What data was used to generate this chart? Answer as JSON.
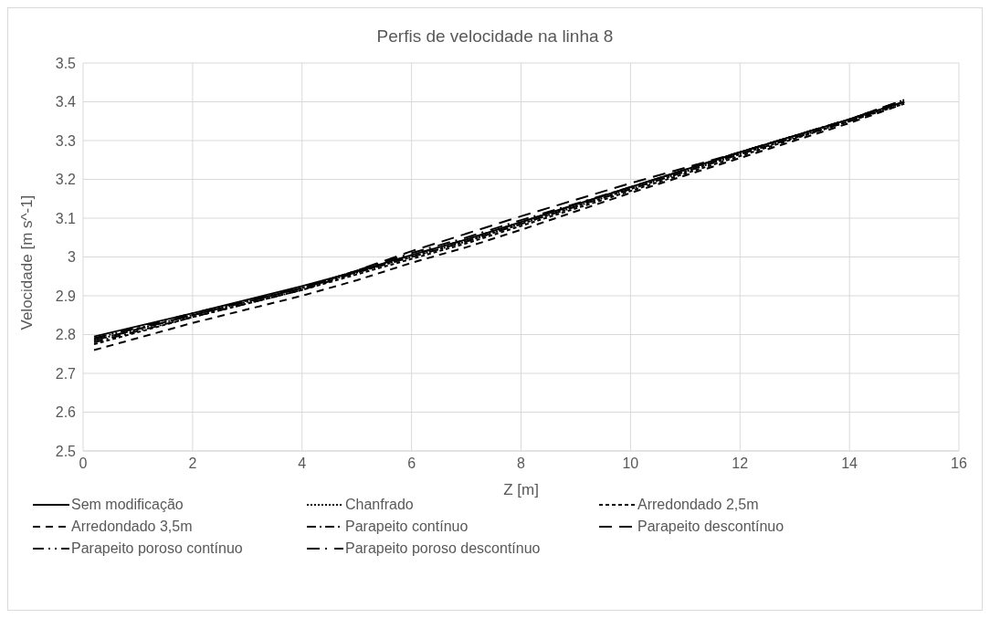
{
  "chart_data": {
    "type": "line",
    "title": "Perfis de velocidade na linha 8",
    "xlabel": "Z [m]",
    "ylabel": "Velocidade [m s^-1]",
    "xlim": [
      0,
      16
    ],
    "xticks": [
      0,
      2,
      4,
      6,
      8,
      10,
      12,
      14,
      16
    ],
    "ylim": [
      2.5,
      3.5
    ],
    "yticks": [
      2.5,
      2.6,
      2.7,
      2.8,
      2.9,
      3,
      3.1,
      3.2,
      3.3,
      3.4,
      3.5
    ],
    "grid": true,
    "legend": "bottom",
    "marker": "none",
    "x": [
      0.2,
      2,
      4,
      5,
      6,
      7,
      8,
      10,
      12,
      14,
      15
    ],
    "series": [
      {
        "name": "Sem modificação",
        "color": "#000000",
        "line_style": "solid",
        "values": [
          2.795,
          2.855,
          2.925,
          2.963,
          3.005,
          3.045,
          3.09,
          3.18,
          3.27,
          3.355,
          3.4
        ]
      },
      {
        "name": "Chanfrado",
        "color": "#000000",
        "line_style": "dotted",
        "values": [
          2.785,
          2.85,
          2.92,
          2.96,
          3.0,
          3.04,
          3.085,
          3.175,
          3.265,
          3.35,
          3.4
        ]
      },
      {
        "name": "Arredondado 2,5m",
        "color": "#000000",
        "line_style": "dashed",
        "values": [
          2.775,
          2.845,
          2.915,
          2.955,
          2.995,
          3.035,
          3.08,
          3.17,
          3.26,
          3.35,
          3.395
        ]
      },
      {
        "name": "Arredondado 3,5m",
        "color": "#000000",
        "line_style": "dashed",
        "values": [
          2.76,
          2.83,
          2.9,
          2.94,
          2.985,
          3.025,
          3.07,
          3.165,
          3.255,
          3.345,
          3.395
        ]
      },
      {
        "name": "Parapeito contínuo",
        "color": "#000000",
        "line_style": "dashed",
        "values": [
          2.78,
          2.845,
          2.915,
          2.96,
          3.0,
          3.04,
          3.085,
          3.175,
          3.265,
          3.35,
          3.4
        ]
      },
      {
        "name": "Parapeito descontínuo",
        "color": "#000000",
        "line_style": "dashed",
        "values": [
          2.785,
          2.85,
          2.92,
          2.965,
          3.015,
          3.06,
          3.105,
          3.19,
          3.27,
          3.355,
          3.405
        ]
      },
      {
        "name": "Parapeito poroso contínuo",
        "color": "#000000",
        "line_style": "dashed",
        "values": [
          2.79,
          2.85,
          2.92,
          2.96,
          3.005,
          3.045,
          3.09,
          3.18,
          3.27,
          3.355,
          3.4
        ]
      },
      {
        "name": "Parapeito poroso descontínuo",
        "color": "#000000",
        "line_style": "dashed",
        "values": [
          2.79,
          2.855,
          2.92,
          2.965,
          3.01,
          3.05,
          3.095,
          3.18,
          3.27,
          3.355,
          3.405
        ]
      }
    ]
  }
}
